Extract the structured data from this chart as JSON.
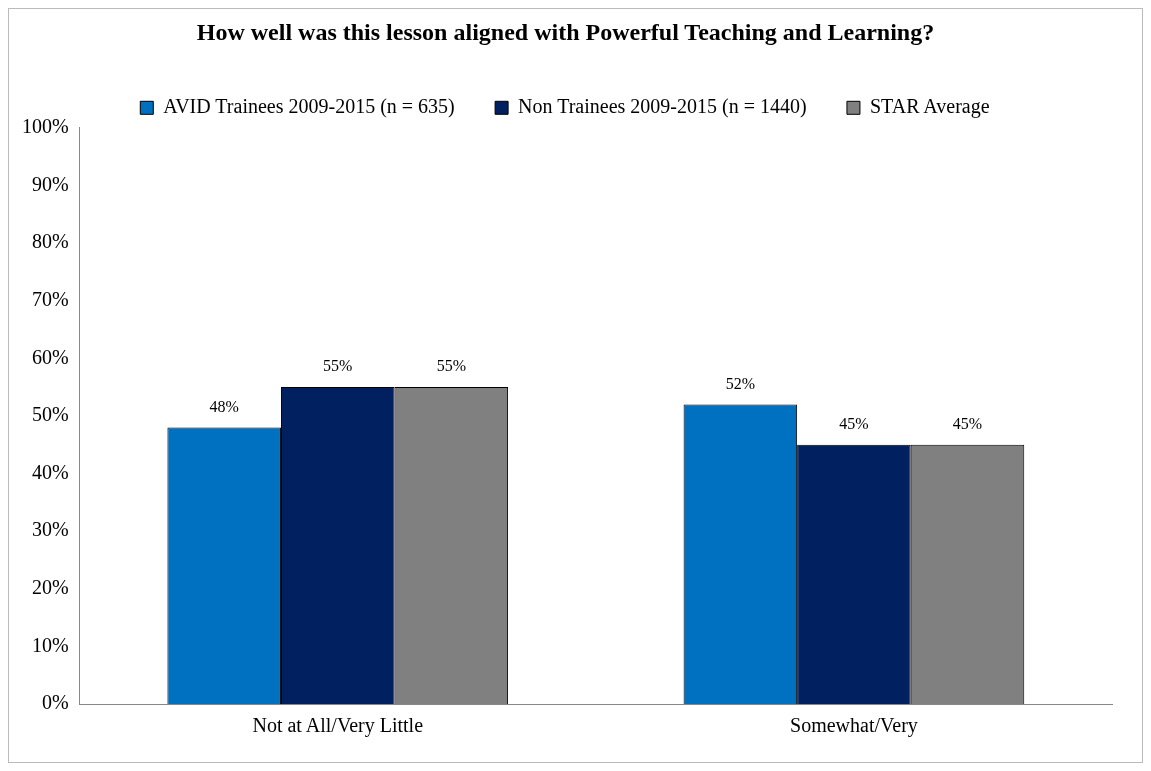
{
  "chart_data": {
    "type": "bar",
    "title": "How well was this lesson aligned with Powerful Teaching and Learning?",
    "categories": [
      "Not at All/Very Little",
      "Somewhat/Very"
    ],
    "series": [
      {
        "name": "AVID Trainees 2009-2015 (n = 635)",
        "color": "#0070c0",
        "values": [
          48,
          52
        ],
        "value_labels": [
          "48%",
          "52%"
        ]
      },
      {
        "name": "Non Trainees 2009-2015 (n = 1440)",
        "color": "#002060",
        "values": [
          55,
          45
        ],
        "value_labels": [
          "55%",
          "45%"
        ]
      },
      {
        "name": "STAR Average",
        "color": "#808080",
        "values": [
          55,
          45
        ],
        "value_labels": [
          "55%",
          "45%"
        ]
      }
    ],
    "ylim": [
      0,
      100
    ],
    "yticks": [
      {
        "value": 0,
        "label": "0%"
      },
      {
        "value": 10,
        "label": "10%"
      },
      {
        "value": 20,
        "label": "20%"
      },
      {
        "value": 30,
        "label": "30%"
      },
      {
        "value": 40,
        "label": "40%"
      },
      {
        "value": 50,
        "label": "50%"
      },
      {
        "value": 60,
        "label": "60%"
      },
      {
        "value": 70,
        "label": "70%"
      },
      {
        "value": 80,
        "label": "80%"
      },
      {
        "value": 90,
        "label": "90%"
      },
      {
        "value": 100,
        "label": "100%"
      }
    ],
    "grid": false,
    "legend": "top"
  }
}
